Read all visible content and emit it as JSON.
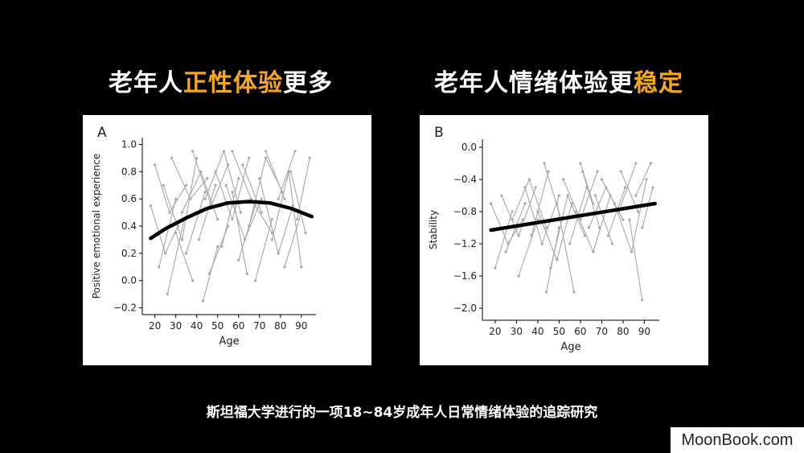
{
  "headings": {
    "left": {
      "pre": "老年人",
      "highlight": "正性体验",
      "post": "更多"
    },
    "right": {
      "pre": "老年人情绪体验更",
      "highlight": "稳定"
    }
  },
  "caption": "斯坦福大学进行的一项18~84岁成年人日常情绪体验的追踪研究",
  "watermark": "MoonBook.com",
  "colors": {
    "background": "#000000",
    "highlight": "#f5a623",
    "scatter": "#a8a8a8",
    "trend": "#000000"
  },
  "chart_data": [
    {
      "type": "scatter",
      "panel_label": "A",
      "xlabel": "Age",
      "ylabel": "Positive emotional experience",
      "xlim": [
        14,
        97
      ],
      "ylim": [
        -0.25,
        1.05
      ],
      "xticks": [
        20,
        30,
        40,
        50,
        60,
        70,
        80,
        90
      ],
      "yticks": [
        -0.2,
        0.0,
        0.2,
        0.4,
        0.6,
        0.8,
        1.0
      ],
      "ytick_labels": [
        "−0.2",
        "0.0",
        "0.2",
        "0.4",
        "0.6",
        "0.8",
        "1.0"
      ],
      "trend": {
        "x": [
          18,
          25,
          35,
          45,
          55,
          65,
          75,
          85,
          95
        ],
        "y": [
          0.31,
          0.38,
          0.46,
          0.53,
          0.57,
          0.58,
          0.57,
          0.53,
          0.47
        ]
      },
      "individual_trajectories": [
        {
          "x": [
            18,
            25,
            31
          ],
          "y": [
            0.55,
            0.2,
            0.4
          ]
        },
        {
          "x": [
            20,
            27,
            35
          ],
          "y": [
            0.85,
            0.5,
            0.7
          ]
        },
        {
          "x": [
            22,
            30
          ],
          "y": [
            0.1,
            0.6
          ]
        },
        {
          "x": [
            24,
            33,
            40
          ],
          "y": [
            0.7,
            0.3,
            0.9
          ]
        },
        {
          "x": [
            26,
            34
          ],
          "y": [
            -0.1,
            0.45
          ]
        },
        {
          "x": [
            28,
            37,
            45
          ],
          "y": [
            0.9,
            0.6,
            0.75
          ]
        },
        {
          "x": [
            30,
            38
          ],
          "y": [
            0.35,
            0.0
          ]
        },
        {
          "x": [
            33,
            42,
            50
          ],
          "y": [
            0.5,
            0.8,
            0.45
          ]
        },
        {
          "x": [
            35,
            44
          ],
          "y": [
            0.2,
            0.65
          ]
        },
        {
          "x": [
            38,
            47,
            55
          ],
          "y": [
            0.95,
            0.55,
            0.85
          ]
        },
        {
          "x": [
            41,
            49
          ],
          "y": [
            0.3,
            0.7
          ]
        },
        {
          "x": [
            44,
            53,
            61
          ],
          "y": [
            0.6,
            0.95,
            0.5
          ]
        },
        {
          "x": [
            46,
            55
          ],
          "y": [
            0.05,
            0.4
          ]
        },
        {
          "x": [
            49,
            57,
            65
          ],
          "y": [
            0.8,
            0.45,
            0.9
          ]
        },
        {
          "x": [
            52,
            60
          ],
          "y": [
            0.25,
            0.75
          ]
        },
        {
          "x": [
            54,
            63,
            71
          ],
          "y": [
            0.7,
            0.3,
            0.6
          ]
        },
        {
          "x": [
            57,
            66
          ],
          "y": [
            0.95,
            0.6
          ]
        },
        {
          "x": [
            60,
            68,
            76
          ],
          "y": [
            0.15,
            0.55,
            0.35
          ]
        },
        {
          "x": [
            62,
            71
          ],
          "y": [
            0.85,
            0.5
          ]
        },
        {
          "x": [
            65,
            73,
            81
          ],
          "y": [
            0.4,
            0.9,
            0.65
          ]
        },
        {
          "x": [
            68,
            76
          ],
          "y": [
            0.0,
            0.45
          ]
        },
        {
          "x": [
            70,
            79,
            86
          ],
          "y": [
            0.75,
            0.2,
            0.55
          ]
        },
        {
          "x": [
            73,
            82
          ],
          "y": [
            0.95,
            0.6
          ]
        },
        {
          "x": [
            76,
            84,
            90
          ],
          "y": [
            0.3,
            0.8,
            0.1
          ]
        },
        {
          "x": [
            79,
            87
          ],
          "y": [
            0.6,
            0.95
          ]
        },
        {
          "x": [
            82,
            90
          ],
          "y": [
            0.1,
            0.5
          ]
        },
        {
          "x": [
            85,
            92
          ],
          "y": [
            0.8,
            0.35
          ]
        },
        {
          "x": [
            88,
            94
          ],
          "y": [
            0.45,
            0.9
          ]
        },
        {
          "x": [
            43,
            50
          ],
          "y": [
            -0.15,
            0.25
          ]
        },
        {
          "x": [
            57,
            64
          ],
          "y": [
            0.65,
            0.05
          ]
        }
      ]
    },
    {
      "type": "scatter",
      "panel_label": "B",
      "xlabel": "Age",
      "ylabel": "Stability",
      "xlim": [
        14,
        97
      ],
      "ylim": [
        -2.15,
        0.1
      ],
      "xticks": [
        20,
        30,
        40,
        50,
        60,
        70,
        80,
        90
      ],
      "yticks": [
        -2.0,
        -1.6,
        -1.2,
        -0.8,
        -0.4,
        0.0
      ],
      "ytick_labels": [
        "−2.0",
        "−1.6",
        "−1.2",
        "−0.8",
        "−0.4",
        "0.0"
      ],
      "trend": {
        "x": [
          18,
          95
        ],
        "y": [
          -1.03,
          -0.7
        ]
      },
      "individual_trajectories": [
        {
          "x": [
            18,
            26,
            33
          ],
          "y": [
            -0.7,
            -1.2,
            -0.9
          ]
        },
        {
          "x": [
            20,
            28
          ],
          "y": [
            -1.5,
            -0.8
          ]
        },
        {
          "x": [
            23,
            31,
            39
          ],
          "y": [
            -0.6,
            -1.1,
            -0.5
          ]
        },
        {
          "x": [
            25,
            34
          ],
          "y": [
            -1.3,
            -0.7
          ]
        },
        {
          "x": [
            28,
            36,
            44
          ],
          "y": [
            -0.9,
            -0.4,
            -1.0
          ]
        },
        {
          "x": [
            31,
            40
          ],
          "y": [
            -1.6,
            -0.9
          ]
        },
        {
          "x": [
            34,
            42,
            50
          ],
          "y": [
            -0.5,
            -1.2,
            -0.6
          ]
        },
        {
          "x": [
            37,
            45
          ],
          "y": [
            -1.1,
            -0.3
          ]
        },
        {
          "x": [
            40,
            49,
            56
          ],
          "y": [
            -0.8,
            -1.4,
            -0.7
          ]
        },
        {
          "x": [
            43,
            51
          ],
          "y": [
            -0.2,
            -0.9
          ]
        },
        {
          "x": [
            46,
            54,
            62
          ],
          "y": [
            -1.5,
            -0.6,
            -1.1
          ]
        },
        {
          "x": [
            49,
            57
          ],
          "y": [
            -0.7,
            -1.8
          ]
        },
        {
          "x": [
            52,
            60,
            68
          ],
          "y": [
            -0.4,
            -0.9,
            -0.3
          ]
        },
        {
          "x": [
            55,
            63
          ],
          "y": [
            -1.2,
            -0.5
          ]
        },
        {
          "x": [
            58,
            66,
            74
          ],
          "y": [
            -0.8,
            -1.3,
            -0.6
          ]
        },
        {
          "x": [
            61,
            69
          ],
          "y": [
            -0.3,
            -1.0
          ]
        },
        {
          "x": [
            64,
            72,
            80
          ],
          "y": [
            -1.0,
            -0.5,
            -0.9
          ]
        },
        {
          "x": [
            67,
            75
          ],
          "y": [
            -0.6,
            -1.2
          ]
        },
        {
          "x": [
            70,
            78,
            86
          ],
          "y": [
            -0.4,
            -0.8,
            -0.2
          ]
        },
        {
          "x": [
            73,
            81
          ],
          "y": [
            -1.1,
            -0.5
          ]
        },
        {
          "x": [
            76,
            84,
            91
          ],
          "y": [
            -0.7,
            -1.3,
            -0.4
          ]
        },
        {
          "x": [
            79,
            87
          ],
          "y": [
            -0.3,
            -0.8
          ]
        },
        {
          "x": [
            83,
            89
          ],
          "y": [
            -0.9,
            -1.9
          ]
        },
        {
          "x": [
            86,
            93
          ],
          "y": [
            -0.6,
            -0.2
          ]
        },
        {
          "x": [
            89,
            94
          ],
          "y": [
            -1.0,
            -0.5
          ]
        },
        {
          "x": [
            44,
            50
          ],
          "y": [
            -1.8,
            -1.0
          ]
        },
        {
          "x": [
            60,
            66
          ],
          "y": [
            -0.2,
            -0.7
          ]
        }
      ]
    }
  ]
}
